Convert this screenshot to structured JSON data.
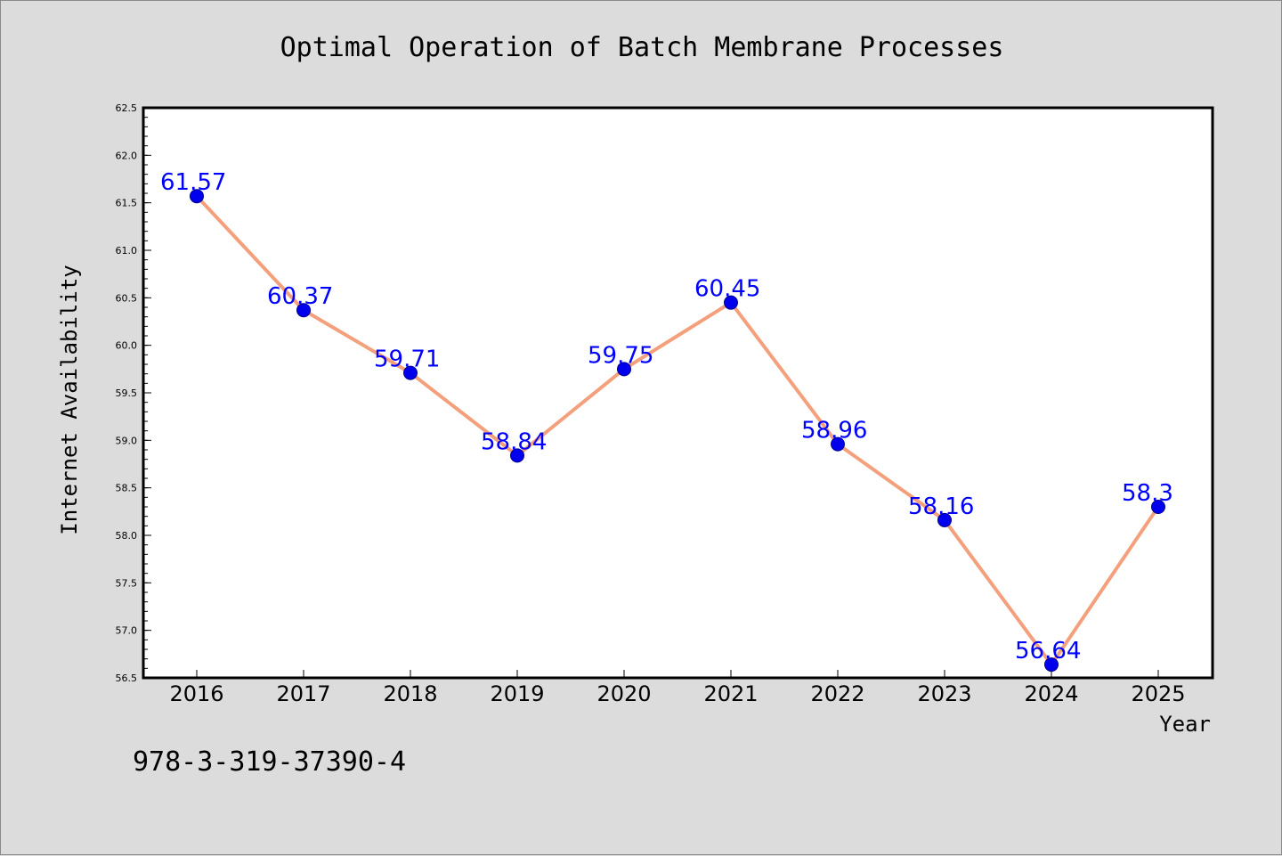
{
  "chart_data": {
    "type": "line",
    "title": "Optimal Operation of Batch Membrane Processes",
    "xlabel": "Year",
    "ylabel": "Internet Availability",
    "categories": [
      "2016",
      "2017",
      "2018",
      "2019",
      "2020",
      "2021",
      "2022",
      "2023",
      "2024",
      "2025"
    ],
    "values": [
      61.57,
      60.37,
      59.71,
      58.84,
      59.75,
      60.45,
      58.96,
      58.16,
      56.64,
      58.3
    ],
    "data_labels": [
      "61.57",
      "60.37",
      "59.71",
      "58.84",
      "59.75",
      "60.45",
      "58.96",
      "58.16",
      "56.64",
      "58.3"
    ],
    "ylim": [
      56.5,
      62.5
    ],
    "yticks": [
      "56.5",
      "57.0",
      "57.5",
      "58.0",
      "58.5",
      "59.0",
      "59.5",
      "60.0",
      "60.5",
      "61.0",
      "61.5",
      "62.0",
      "62.5"
    ],
    "grid": false,
    "legend": "none",
    "line_color": "#f4a07c",
    "marker_color": "#0000ee",
    "label_color": "#0000ff"
  },
  "footer": {
    "isbn": "978-3-319-37390-4"
  }
}
